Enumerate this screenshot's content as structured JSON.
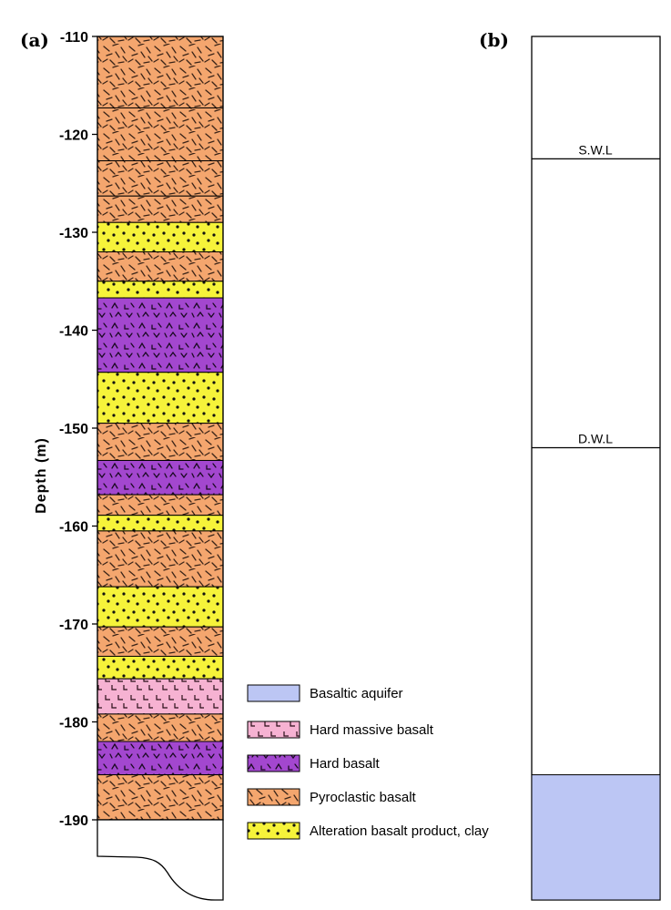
{
  "panel_a": {
    "label": "(a)",
    "axis_title": "Depth (m)",
    "depth_range": [
      -110,
      -190
    ],
    "ticks": [
      "-110",
      "-120",
      "-130",
      "-140",
      "-150",
      "-160",
      "-170",
      "-180",
      "-190"
    ],
    "tick_values": [
      -110,
      -120,
      -130,
      -140,
      -150,
      -160,
      -170,
      -180,
      -190
    ],
    "layers": [
      {
        "top": -110.0,
        "bottom": -117.3,
        "lithology": "pyroclastic"
      },
      {
        "top": -117.3,
        "bottom": -122.7,
        "lithology": "pyroclastic"
      },
      {
        "top": -122.7,
        "bottom": -126.3,
        "lithology": "pyroclastic"
      },
      {
        "top": -126.3,
        "bottom": -129.0,
        "lithology": "pyroclastic"
      },
      {
        "top": -129.0,
        "bottom": -132.0,
        "lithology": "alteration"
      },
      {
        "top": -132.0,
        "bottom": -135.0,
        "lithology": "pyroclastic"
      },
      {
        "top": -135.0,
        "bottom": -136.7,
        "lithology": "alteration"
      },
      {
        "top": -136.7,
        "bottom": -144.3,
        "lithology": "hard_basalt"
      },
      {
        "top": -144.3,
        "bottom": -149.5,
        "lithology": "alteration"
      },
      {
        "top": -149.5,
        "bottom": -153.3,
        "lithology": "pyroclastic"
      },
      {
        "top": -153.3,
        "bottom": -156.8,
        "lithology": "hard_basalt"
      },
      {
        "top": -156.8,
        "bottom": -158.9,
        "lithology": "pyroclastic"
      },
      {
        "top": -158.9,
        "bottom": -160.5,
        "lithology": "alteration"
      },
      {
        "top": -160.5,
        "bottom": -166.2,
        "lithology": "pyroclastic"
      },
      {
        "top": -166.2,
        "bottom": -170.3,
        "lithology": "alteration"
      },
      {
        "top": -170.3,
        "bottom": -173.3,
        "lithology": "pyroclastic"
      },
      {
        "top": -173.3,
        "bottom": -175.6,
        "lithology": "alteration"
      },
      {
        "top": -175.6,
        "bottom": -179.2,
        "lithology": "hard_massive"
      },
      {
        "top": -179.2,
        "bottom": -182.0,
        "lithology": "pyroclastic"
      },
      {
        "top": -182.0,
        "bottom": -185.4,
        "lithology": "hard_basalt"
      },
      {
        "top": -185.4,
        "bottom": -190.0,
        "lithology": "pyroclastic"
      }
    ]
  },
  "panel_b": {
    "label": "(b)",
    "swl_label": "S.W.L",
    "swl_depth": -122.5,
    "dwl_label": "D.W.L",
    "dwl_depth": -152.0,
    "aquifer_top": -185.4
  },
  "legend": [
    {
      "key": "aquifer",
      "label": "Basaltic aquifer"
    },
    {
      "key": "hard_massive",
      "label": "Hard massive basalt"
    },
    {
      "key": "hard_basalt",
      "label": "Hard basalt"
    },
    {
      "key": "pyroclastic",
      "label": "Pyroclastic basalt"
    },
    {
      "key": "alteration",
      "label": "Alteration basalt product, clay"
    }
  ],
  "colors": {
    "pyroclastic": "#f4a66e",
    "alteration": "#f6f33a",
    "hard_basalt": "#a347cf",
    "hard_massive": "#f6b2d2",
    "aquifer": "#bcc6f4"
  }
}
